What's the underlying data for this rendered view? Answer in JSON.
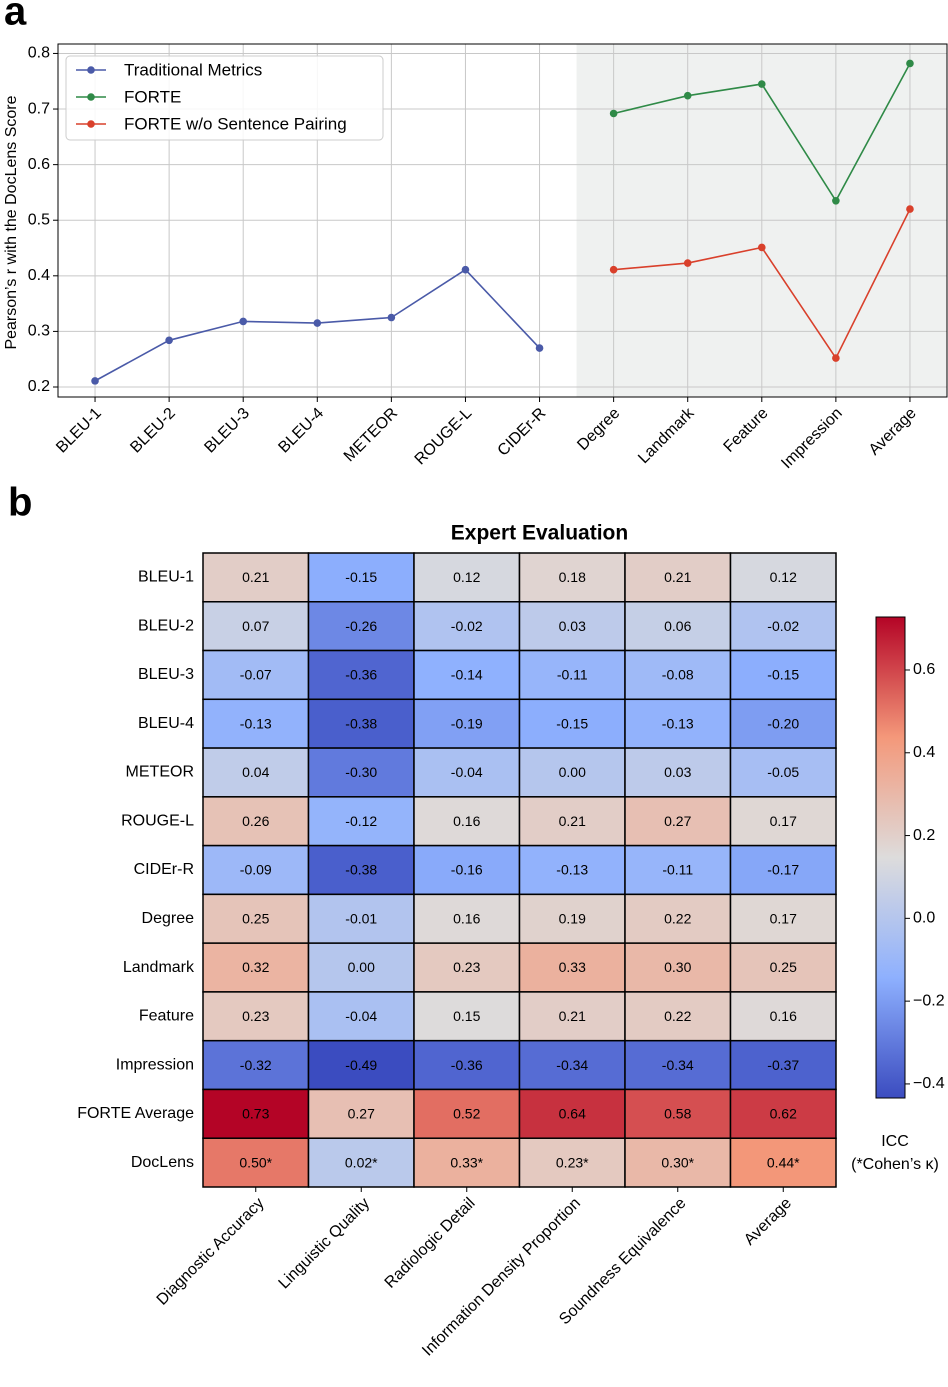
{
  "chart_data": [
    {
      "type": "line",
      "label": "a",
      "ylabel": "Pearson’s r with the DocLens Score",
      "categories": [
        "BLEU-1",
        "BLEU-2",
        "BLEU-3",
        "BLEU-4",
        "METEOR",
        "ROUGE-L",
        "CIDEr-R",
        "Degree",
        "Landmark",
        "Feature",
        "Impression",
        "Average"
      ],
      "series": [
        {
          "name": "Traditional Metrics",
          "color": "#4a5aa8",
          "values": [
            0.211,
            0.284,
            0.318,
            0.315,
            0.325,
            0.411,
            0.27,
            null,
            null,
            null,
            null,
            null
          ]
        },
        {
          "name": "FORTE",
          "color": "#2f8a47",
          "values": [
            null,
            null,
            null,
            null,
            null,
            null,
            null,
            0.692,
            0.724,
            0.745,
            0.535,
            0.782
          ]
        },
        {
          "name": "FORTE w/o Sentence Pairing",
          "color": "#d9402b",
          "values": [
            null,
            null,
            null,
            null,
            null,
            null,
            null,
            0.411,
            0.423,
            0.451,
            0.252,
            0.52
          ]
        }
      ],
      "ylim": [
        0.182,
        0.817
      ],
      "yticks": [
        0.2,
        0.3,
        0.4,
        0.5,
        0.6,
        0.7,
        0.8
      ],
      "grid": true,
      "legend": "upper left"
    },
    {
      "type": "heatmap",
      "label": "b",
      "title": "Expert Evaluation",
      "rows": [
        "BLEU-1",
        "BLEU-2",
        "BLEU-3",
        "BLEU-4",
        "METEOR",
        "ROUGE-L",
        "CIDEr-R",
        "Degree",
        "Landmark",
        "Feature",
        "Impression",
        "FORTE Average",
        "DocLens"
      ],
      "columns": [
        "Diagnostic Accuracy",
        "Linguistic Quality",
        "Radiologic Detail",
        "Information Density Proportion",
        "Soundness Equivalence",
        "Average"
      ],
      "values": [
        [
          0.21,
          -0.15,
          0.12,
          0.18,
          0.21,
          0.12
        ],
        [
          0.07,
          -0.26,
          -0.02,
          0.03,
          0.06,
          -0.02
        ],
        [
          -0.07,
          -0.36,
          -0.14,
          -0.11,
          -0.08,
          -0.15
        ],
        [
          -0.13,
          -0.38,
          -0.19,
          -0.15,
          -0.13,
          -0.2
        ],
        [
          0.04,
          -0.3,
          -0.04,
          0.0,
          0.03,
          -0.05
        ],
        [
          0.26,
          -0.12,
          0.16,
          0.21,
          0.27,
          0.17
        ],
        [
          -0.09,
          -0.38,
          -0.16,
          -0.13,
          -0.11,
          -0.17
        ],
        [
          0.25,
          -0.01,
          0.16,
          0.19,
          0.22,
          0.17
        ],
        [
          0.32,
          0.0,
          0.23,
          0.33,
          0.3,
          0.25
        ],
        [
          0.23,
          -0.04,
          0.15,
          0.21,
          0.22,
          0.16
        ],
        [
          -0.32,
          -0.49,
          -0.36,
          -0.34,
          -0.34,
          -0.37
        ],
        [
          0.73,
          0.27,
          0.52,
          0.64,
          0.58,
          0.62
        ],
        [
          0.5,
          0.02,
          0.33,
          0.23,
          0.3,
          0.44
        ]
      ],
      "value_labels": [
        [
          "0.21",
          "-0.15",
          "0.12",
          "0.18",
          "0.21",
          "0.12"
        ],
        [
          "0.07",
          "-0.26",
          "-0.02",
          "0.03",
          "0.06",
          "-0.02"
        ],
        [
          "-0.07",
          "-0.36",
          "-0.14",
          "-0.11",
          "-0.08",
          "-0.15"
        ],
        [
          "-0.13",
          "-0.38",
          "-0.19",
          "-0.15",
          "-0.13",
          "-0.20"
        ],
        [
          "0.04",
          "-0.30",
          "-0.04",
          "0.00",
          "0.03",
          "-0.05"
        ],
        [
          "0.26",
          "-0.12",
          "0.16",
          "0.21",
          "0.27",
          "0.17"
        ],
        [
          "-0.09",
          "-0.38",
          "-0.16",
          "-0.13",
          "-0.11",
          "-0.17"
        ],
        [
          "0.25",
          "-0.01",
          "0.16",
          "0.19",
          "0.22",
          "0.17"
        ],
        [
          "0.32",
          "0.00",
          "0.23",
          "0.33",
          "0.30",
          "0.25"
        ],
        [
          "0.23",
          "-0.04",
          "0.15",
          "0.21",
          "0.22",
          "0.16"
        ],
        [
          "-0.32",
          "-0.49",
          "-0.36",
          "-0.34",
          "-0.34",
          "-0.37"
        ],
        [
          "0.73",
          "0.27",
          "0.52",
          "0.64",
          "0.58",
          "0.62"
        ],
        [
          "0.50*",
          "0.02*",
          "0.33*",
          "0.23*",
          "0.30*",
          "0.44*"
        ]
      ],
      "colormap": "coolwarm",
      "clim": [
        -0.434,
        0.728
      ],
      "cticks": [
        {
          "value": -0.4,
          "label": "−0.4"
        },
        {
          "value": -0.2,
          "label": "−0.2"
        },
        {
          "value": 0,
          "label": "0.0"
        },
        0.2,
        0.4,
        0.6
      ],
      "clabel": [
        "ICC",
        "(*Cohen’s κ)"
      ]
    }
  ]
}
